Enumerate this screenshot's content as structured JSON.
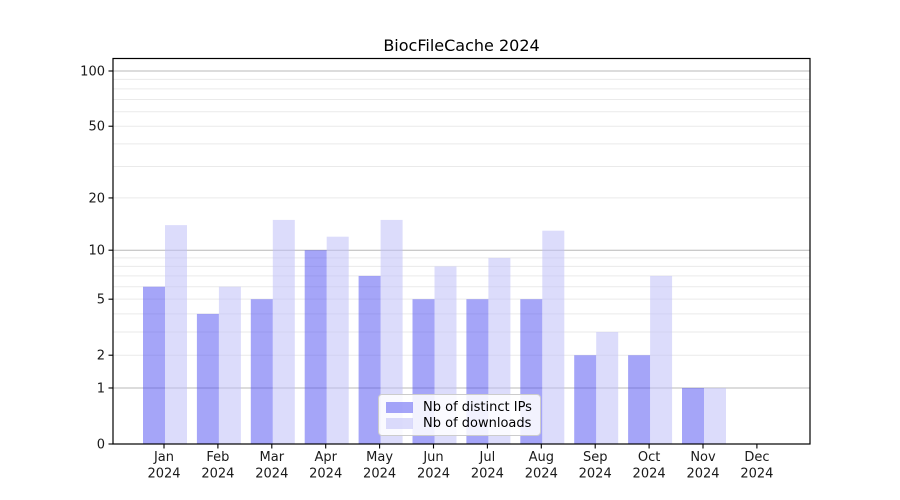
{
  "chart_data": {
    "type": "bar",
    "title": "BiocFileCache 2024",
    "categories": [
      "Jan",
      "Feb",
      "Mar",
      "Apr",
      "May",
      "Jun",
      "Jul",
      "Aug",
      "Sep",
      "Oct",
      "Nov",
      "Dec"
    ],
    "category_year": "2024",
    "series": [
      {
        "name": "Nb of distinct IPs",
        "color": "rgba(82,82,242,0.52)",
        "values": [
          6,
          4,
          5,
          10,
          7,
          5,
          5,
          5,
          2,
          2,
          1,
          0
        ]
      },
      {
        "name": "Nb of downloads",
        "color": "rgba(192,192,247,0.55)",
        "values": [
          14,
          6,
          15,
          12,
          15,
          8,
          9,
          13,
          3,
          7,
          1,
          0
        ]
      }
    ],
    "y_axis": {
      "scale": "log1p",
      "tick_labels": [
        "0",
        "1",
        "2",
        "5",
        "10",
        "20",
        "50",
        "100"
      ],
      "ticks": [
        0,
        1,
        2,
        5,
        10,
        20,
        50,
        100
      ],
      "major_gridlines": [
        1,
        10,
        100
      ],
      "minor_gridlines": [
        2,
        3,
        4,
        5,
        6,
        7,
        8,
        9,
        20,
        30,
        40,
        50,
        60,
        70,
        80,
        90
      ],
      "range": [
        0,
        100
      ]
    },
    "legend_position": "bottom-center",
    "grid": true
  },
  "colors": {
    "axis": "#000000",
    "major_grid": "#b8b8b8",
    "minor_grid": "#eaeaea",
    "tick_label": "#1a1a1a",
    "background": "#ffffff"
  }
}
